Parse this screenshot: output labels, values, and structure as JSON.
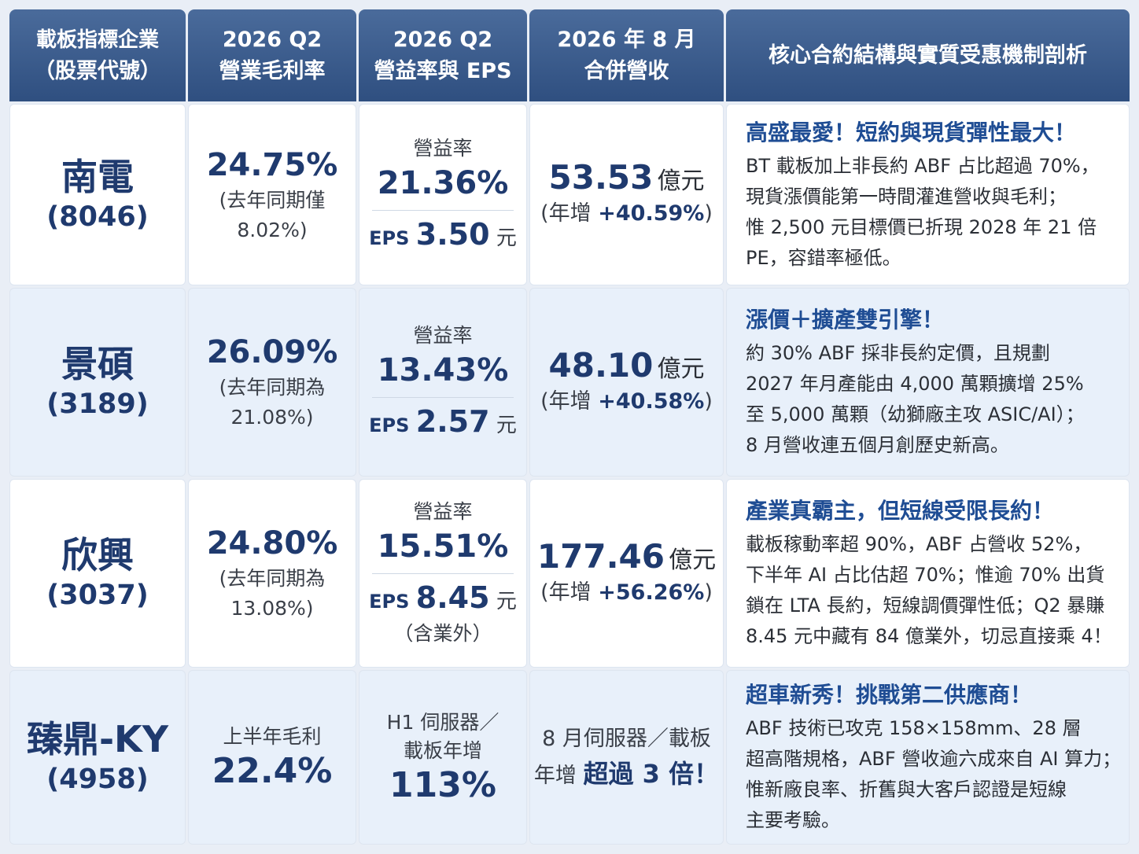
{
  "headers": [
    {
      "line1": "載板指標企業",
      "line2": "（股票代號）"
    },
    {
      "line1": "2026 Q2",
      "line2": "營業毛利率"
    },
    {
      "line1": "2026 Q2",
      "line2": "營益率與 EPS"
    },
    {
      "line1": "2026 年 8 月",
      "line2": "合併營收"
    },
    {
      "line1": "核心合約結構與實質受惠機制剖析"
    }
  ],
  "rows": [
    {
      "name": "南電",
      "code": "(8046)",
      "gross_margin": "24.75%",
      "gm_note1": "(去年同期僅",
      "gm_note2": "8.02%)",
      "op_label": "營益率",
      "op_margin": "21.36%",
      "eps_label": "EPS",
      "eps_value": "3.50",
      "eps_unit": "元",
      "revenue": "53.53",
      "revenue_unit": "億元",
      "yoy_prefix": "(年增",
      "yoy_value": "+40.59%",
      "yoy_suffix": ")",
      "analysis_title": "高盛最愛！短約與現貨彈性最大！",
      "analysis_lines": [
        "BT 載板加上非長約 ABF 占比超過 70%，",
        "現貨漲價能第一時間灌進營收與毛利；",
        "惟 2,500 元目標價已折現 2028 年 21 倍",
        "PE，容錯率極低。"
      ]
    },
    {
      "name": "景碩",
      "code": "(3189)",
      "gross_margin": "26.09%",
      "gm_note1": "(去年同期為",
      "gm_note2": "21.08%)",
      "op_label": "營益率",
      "op_margin": "13.43%",
      "eps_label": "EPS",
      "eps_value": "2.57",
      "eps_unit": "元",
      "revenue": "48.10",
      "revenue_unit": "億元",
      "yoy_prefix": "(年增",
      "yoy_value": "+40.58%",
      "yoy_suffix": ")",
      "analysis_title": "漲價＋擴產雙引擎！",
      "analysis_lines": [
        "約 30% ABF 採非長約定價，且規劃",
        "2027 年月產能由 4,000 萬顆擴增 25%",
        "至 5,000 萬顆（幼獅廠主攻 ASIC/AI）；",
        "8 月營收連五個月創歷史新高。"
      ]
    },
    {
      "name": "欣興",
      "code": "(3037)",
      "gross_margin": "24.80%",
      "gm_note1": "(去年同期為",
      "gm_note2": "13.08%)",
      "op_label": "營益率",
      "op_margin": "15.51%",
      "eps_label": "EPS",
      "eps_value": "8.45",
      "eps_unit": "元",
      "eps_note": "（含業外）",
      "revenue": "177.46",
      "revenue_unit": "億元",
      "yoy_prefix": "(年增",
      "yoy_value": "+56.26%",
      "yoy_suffix": ")",
      "analysis_title": "產業真霸主，但短線受限長約！",
      "analysis_lines": [
        "載板稼動率超 90%，ABF 占營收 52%，",
        "下半年 AI 占比估超 70%；惟逾 70% 出貨",
        "鎖在 LTA 長約，短線調價彈性低；Q2 暴賺",
        "8.45 元中藏有 84 億業外，切忌直接乘 4！"
      ]
    },
    {
      "name": "臻鼎-KY",
      "code": "(4958)",
      "gm_label": "上半年毛利",
      "gross_margin": "22.4%",
      "op_line1": "H1 伺服器／",
      "op_line2": "載板年增",
      "op_value": "113%",
      "rev_line1": "8 月伺服器／載板",
      "rev_prefix": "年增",
      "rev_value": "超過 3 倍！",
      "analysis_title": "超車新秀！挑戰第二供應商！",
      "analysis_lines": [
        "ABF 技術已攻克 158×158mm、28 層",
        "超高階規格，ABF 營收逾六成來自 AI 算力；",
        "惟新廠良率、折舊與大客戶認證是短線",
        "主要考驗。"
      ]
    }
  ]
}
